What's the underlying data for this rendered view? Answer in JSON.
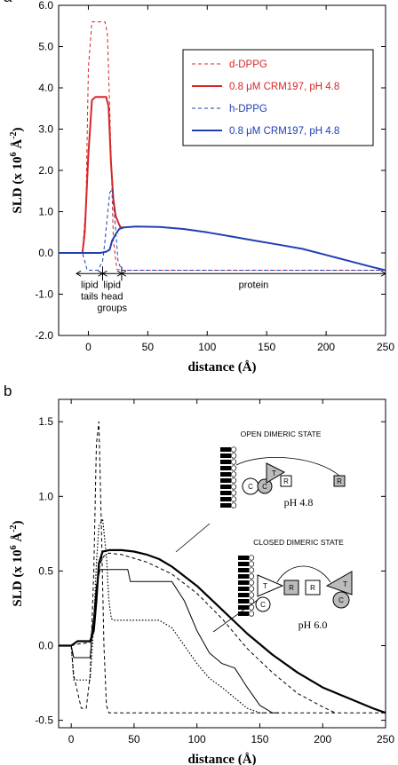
{
  "chart_data": [
    {
      "panel_label": "a",
      "type": "line",
      "xlabel": "distance (Å)",
      "ylabel": "SLD (x 10",
      "ylabel_exp": "6",
      "ylabel_unit": "Å",
      "ylabel_unit_exp": "-2",
      "ylabel_close": ")",
      "xlim": [
        -25,
        250
      ],
      "ylim": [
        -2.0,
        6.0
      ],
      "xticks": [
        0,
        50,
        100,
        150,
        200,
        250
      ],
      "yticks": [
        -2.0,
        -1.0,
        0.0,
        1.0,
        2.0,
        3.0,
        4.0,
        5.0,
        6.0
      ],
      "ytick_labels": [
        "-2.0",
        "-1.0",
        "0.0",
        "1.0",
        "2.0",
        "3.0",
        "4.0",
        "5.0",
        "6.0"
      ],
      "legend_position": "top-right",
      "series": [
        {
          "name": "d-DPPG",
          "color": "#d62728",
          "style": "dashed",
          "width": 1,
          "x": [
            -25,
            -5,
            -2,
            0,
            3,
            14,
            16,
            18,
            21,
            24,
            28,
            250
          ],
          "y": [
            0,
            0,
            1.2,
            4.5,
            5.6,
            5.6,
            5.3,
            3.5,
            0.3,
            -0.4,
            -0.42,
            -0.42
          ]
        },
        {
          "name": "0.8 μM CRM197,  pH 4.8",
          "color": "#d62728",
          "style": "solid",
          "width": 2,
          "x": [
            -25,
            -5,
            -3,
            0,
            3,
            6,
            15,
            17,
            19,
            21,
            23,
            25,
            27,
            30
          ],
          "y": [
            0,
            0,
            0.5,
            2.4,
            3.7,
            3.78,
            3.78,
            3.55,
            2.2,
            1.3,
            0.9,
            0.75,
            0.62,
            0.62
          ]
        },
        {
          "name": "h-DPPG",
          "color": "#1f3fb5",
          "style": "dashed",
          "width": 1,
          "x": [
            -25,
            -5,
            -3,
            -1,
            8,
            12,
            14,
            16,
            18,
            20,
            22,
            25,
            28,
            250
          ],
          "y": [
            0,
            0,
            -0.2,
            -0.42,
            -0.42,
            -0.2,
            0.3,
            0.9,
            1.45,
            1.55,
            0.9,
            -0.2,
            -0.42,
            -0.42
          ]
        },
        {
          "name": "0.8 μM CRM197,  pH 4.8",
          "color": "#1f3fb5",
          "style": "solid",
          "width": 2,
          "x": [
            -25,
            -5,
            0,
            10,
            15,
            18,
            20,
            23,
            26,
            30,
            40,
            60,
            80,
            100,
            120,
            140,
            160,
            180,
            200,
            220,
            240,
            250
          ],
          "y": [
            0,
            0,
            0,
            0,
            0.03,
            0.08,
            0.3,
            0.45,
            0.58,
            0.62,
            0.64,
            0.63,
            0.58,
            0.5,
            0.4,
            0.3,
            0.2,
            0.1,
            -0.05,
            -0.2,
            -0.35,
            -0.42
          ]
        }
      ],
      "annotations": [
        {
          "text": "lipid",
          "line2": "tails",
          "x1": -10,
          "x2": 12
        },
        {
          "text": "lipid",
          "line2": "head",
          "line3": "groups",
          "x1": 12,
          "x2": 28
        },
        {
          "text": "protein",
          "x1": 28,
          "x2": 250
        }
      ]
    },
    {
      "panel_label": "b",
      "type": "line",
      "xlabel": "distance (Å)",
      "ylabel": "SLD (x 10",
      "ylabel_exp": "6",
      "ylabel_unit": "Å",
      "ylabel_unit_exp": "-2",
      "ylabel_close": ")",
      "xlim": [
        -10,
        250
      ],
      "ylim": [
        -0.55,
        1.65
      ],
      "xticks": [
        0,
        50,
        100,
        150,
        200,
        250
      ],
      "yticks": [
        -0.5,
        0.0,
        0.5,
        1.0,
        1.5
      ],
      "ytick_labels": [
        "-0.5",
        "0.0",
        "0.5",
        "1.0",
        "1.5"
      ],
      "series": [
        {
          "color": "#000000",
          "style": "solid",
          "width": 2.2,
          "x": [
            -10,
            0,
            5,
            15,
            18,
            20,
            22,
            25,
            30,
            40,
            50,
            60,
            70,
            80,
            100,
            120,
            140,
            160,
            180,
            200,
            220,
            240,
            250
          ],
          "y": [
            0,
            0,
            0.03,
            0.03,
            0.1,
            0.3,
            0.55,
            0.63,
            0.64,
            0.64,
            0.63,
            0.61,
            0.58,
            0.53,
            0.4,
            0.24,
            0.08,
            -0.06,
            -0.18,
            -0.28,
            -0.35,
            -0.42,
            -0.45
          ]
        },
        {
          "color": "#000000",
          "style": "dashed",
          "width": 1,
          "x": [
            -10,
            0,
            5,
            15,
            18,
            20,
            23,
            26,
            30,
            40,
            60,
            80,
            100,
            120,
            140,
            160,
            180,
            200,
            210
          ],
          "y": [
            0,
            0,
            0.01,
            0.02,
            0.2,
            0.4,
            0.55,
            0.6,
            0.62,
            0.61,
            0.56,
            0.48,
            0.35,
            0.18,
            -0.02,
            -0.18,
            -0.32,
            -0.41,
            -0.45
          ]
        },
        {
          "color": "#000000",
          "style": "solid",
          "width": 1,
          "x": [
            -10,
            0,
            2,
            15,
            17,
            20,
            23,
            45,
            47,
            80,
            90,
            100,
            110,
            120,
            130,
            140,
            150,
            160,
            165
          ],
          "y": [
            0,
            0,
            -0.08,
            -0.08,
            0.1,
            0.4,
            0.51,
            0.51,
            0.43,
            0.43,
            0.3,
            0.1,
            -0.05,
            -0.12,
            -0.15,
            -0.28,
            -0.4,
            -0.45,
            -0.45
          ]
        },
        {
          "color": "#000000",
          "style": "dotted",
          "width": 1.2,
          "x": [
            -10,
            0,
            2,
            15,
            18,
            20,
            22,
            25,
            28,
            30,
            32,
            34,
            70,
            80,
            90,
            100,
            110,
            120,
            130,
            140,
            150,
            155
          ],
          "y": [
            0,
            0,
            -0.23,
            -0.23,
            0.15,
            0.55,
            0.8,
            0.85,
            0.6,
            0.3,
            0.18,
            0.17,
            0.17,
            0.12,
            0,
            -0.12,
            -0.22,
            -0.28,
            -0.35,
            -0.42,
            -0.45,
            -0.45
          ]
        },
        {
          "color": "#000000",
          "style": "dashed",
          "width": 1,
          "x": [
            -10,
            0,
            2,
            8,
            12,
            15,
            18,
            20,
            22,
            24,
            26,
            28,
            30,
            250
          ],
          "y": [
            0,
            0,
            -0.2,
            -0.42,
            -0.42,
            -0.2,
            0.5,
            1.35,
            1.5,
            0.8,
            0,
            -0.4,
            -0.45,
            -0.45
          ]
        }
      ],
      "insets": [
        {
          "state": "OPEN DIMERIC STATE",
          "ph": "pH 4.8",
          "domains": [
            "C",
            "C",
            "T",
            "R",
            "R"
          ]
        },
        {
          "state": "CLOSED DIMERIC STATE",
          "ph": "pH 6.0",
          "domains": [
            "C",
            "C",
            "T",
            "T",
            "R",
            "R"
          ]
        }
      ]
    }
  ],
  "colors": {
    "red": "#d62728",
    "blue": "#1f3fb5",
    "black": "#000000"
  }
}
